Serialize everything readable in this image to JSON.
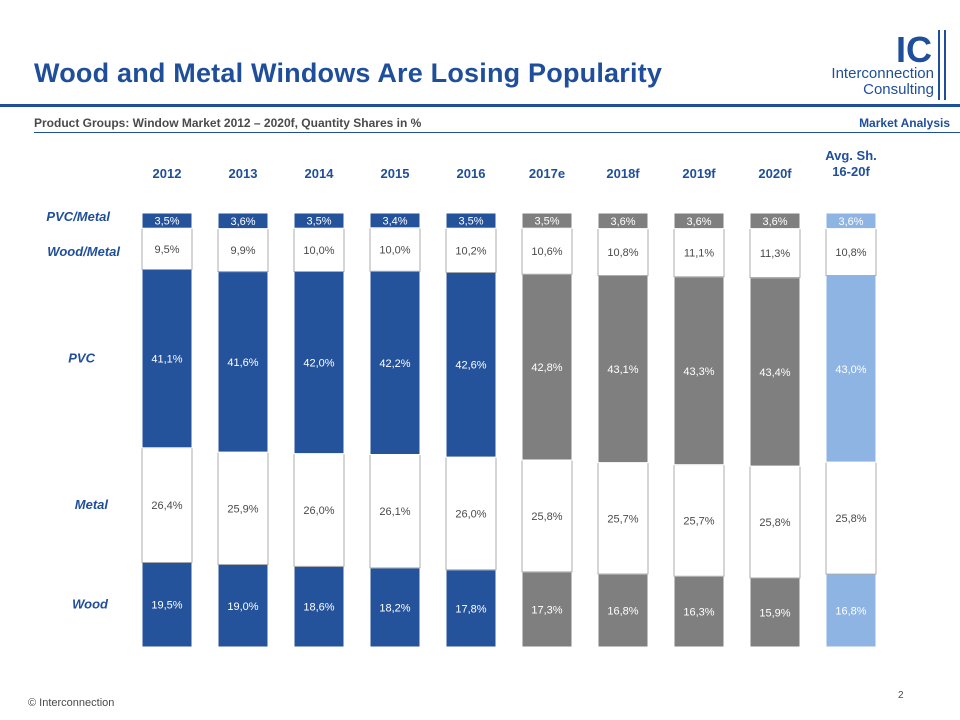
{
  "header": {
    "title": "Wood and Metal Windows Are Losing Popularity",
    "subtitle": "Product Groups: Window Market 2012 – 2020f, Quantity Shares in %",
    "section": "Market Analysis"
  },
  "logo": {
    "mark": "IC",
    "line1": "Interconnection",
    "line2": "Consulting"
  },
  "footer": {
    "copyright": "© Interconnection",
    "page": "2"
  },
  "colors": {
    "actual": "#24529b",
    "forecast": "#7f7f7f",
    "average": "#8eb4e3",
    "white_segment": "#ffffff",
    "text_blue": "#1f4e9a"
  },
  "chart_data": {
    "type": "bar",
    "stacked": true,
    "normalized": "100%",
    "categories": [
      "2012",
      "2013",
      "2014",
      "2015",
      "2016",
      "2017e",
      "2018f",
      "2019f",
      "2020f",
      "Avg. Sh. 16-20f"
    ],
    "category_lines": [
      [
        "2012"
      ],
      [
        "2013"
      ],
      [
        "2014"
      ],
      [
        "2015"
      ],
      [
        "2016"
      ],
      [
        "2017e"
      ],
      [
        "2018f"
      ],
      [
        "2019f"
      ],
      [
        "2020f"
      ],
      [
        "Avg. Sh.",
        "16-20f"
      ]
    ],
    "category_group": [
      "actual",
      "actual",
      "actual",
      "actual",
      "actual",
      "forecast",
      "forecast",
      "forecast",
      "forecast",
      "average"
    ],
    "series": [
      {
        "name": "Wood",
        "values": [
          19.5,
          19.0,
          18.6,
          18.2,
          17.8,
          17.3,
          16.8,
          16.3,
          15.9,
          16.8
        ],
        "labels": [
          "19,5%",
          "19,0%",
          "18,6%",
          "18,2%",
          "17,8%",
          "17,3%",
          "16,8%",
          "16,3%",
          "15,9%",
          "16,8%"
        ]
      },
      {
        "name": "Metal",
        "values": [
          26.4,
          25.9,
          26.0,
          26.1,
          26.0,
          25.8,
          25.7,
          25.7,
          25.8,
          25.8
        ],
        "labels": [
          "26,4%",
          "25,9%",
          "26,0%",
          "26,1%",
          "26,0%",
          "25,8%",
          "25,7%",
          "25,7%",
          "25,8%",
          "25,8%"
        ]
      },
      {
        "name": "PVC",
        "values": [
          41.1,
          41.6,
          42.0,
          42.2,
          42.6,
          42.8,
          43.1,
          43.3,
          43.4,
          43.0
        ],
        "labels": [
          "41,1%",
          "41,6%",
          "42,0%",
          "42,2%",
          "42,6%",
          "42,8%",
          "43,1%",
          "43,3%",
          "43,4%",
          "43,0%"
        ]
      },
      {
        "name": "Wood/Metal",
        "values": [
          9.5,
          9.9,
          10.0,
          10.0,
          10.2,
          10.6,
          10.8,
          11.1,
          11.3,
          10.8
        ],
        "labels": [
          "9,5%",
          "9,9%",
          "10,0%",
          "10,0%",
          "10,2%",
          "10,6%",
          "10,8%",
          "11,1%",
          "11,3%",
          "10,8%"
        ]
      },
      {
        "name": "PVC/Metal",
        "values": [
          3.5,
          3.6,
          3.5,
          3.4,
          3.5,
          3.5,
          3.6,
          3.6,
          3.6,
          3.6
        ],
        "labels": [
          "3,5%",
          "3,6%",
          "3,5%",
          "3,4%",
          "3,5%",
          "3,5%",
          "3,6%",
          "3,6%",
          "3,6%",
          "3,6%"
        ]
      }
    ],
    "filled_series": [
      "Wood",
      "PVC",
      "PVC/Metal"
    ],
    "ylim": [
      0,
      100
    ],
    "grid": false,
    "legend": "left row labels"
  }
}
